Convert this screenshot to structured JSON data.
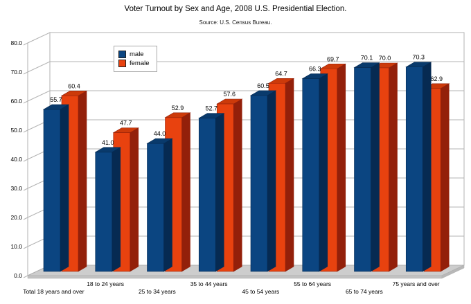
{
  "chart_data": {
    "type": "bar",
    "style": "3d-column",
    "title": "Voter Turnout by Sex and Age, 2008 U.S. Presidential Election.",
    "subtitle": "Source: U.S. Census Bureau.",
    "categories": [
      "Total 18 years and over",
      "18 to 24 years",
      "25 to 34 years",
      "35 to 44 years",
      "45 to 54 years",
      "55 to 64 years",
      "65 to 74 years",
      "75 years and over"
    ],
    "series": [
      {
        "name": "male",
        "color_front": "#0b4581",
        "color_side": "#062a52",
        "color_top": "#093a6c",
        "values": [
          55.7,
          41.0,
          44.0,
          52.7,
          60.5,
          66.3,
          70.1,
          70.3
        ]
      },
      {
        "name": "female",
        "color_front": "#e8420f",
        "color_side": "#93200a",
        "color_top": "#cc3a0a",
        "values": [
          60.4,
          47.7,
          52.9,
          57.6,
          64.7,
          69.7,
          70.0,
          62.9
        ]
      }
    ],
    "ylim": [
      0,
      80
    ],
    "ytick_step": 10,
    "ytick_labels": [
      "0.0",
      "10.0",
      "20.0",
      "30.0",
      "40.0",
      "50.0",
      "60.0",
      "70.0",
      "80.0"
    ],
    "grid": true,
    "legend_position": "upper-left",
    "value_labels": true
  },
  "colors": {
    "background": "#ffffff",
    "gridline": "#b3b3b3",
    "wall_edge": "#b0b0b0",
    "wall_fill": "#ffffff",
    "floor_fill": "#cdcdcd",
    "floor_front": "#c2c2c2",
    "floor_side": "#b8b8b8",
    "text": "#000000"
  }
}
